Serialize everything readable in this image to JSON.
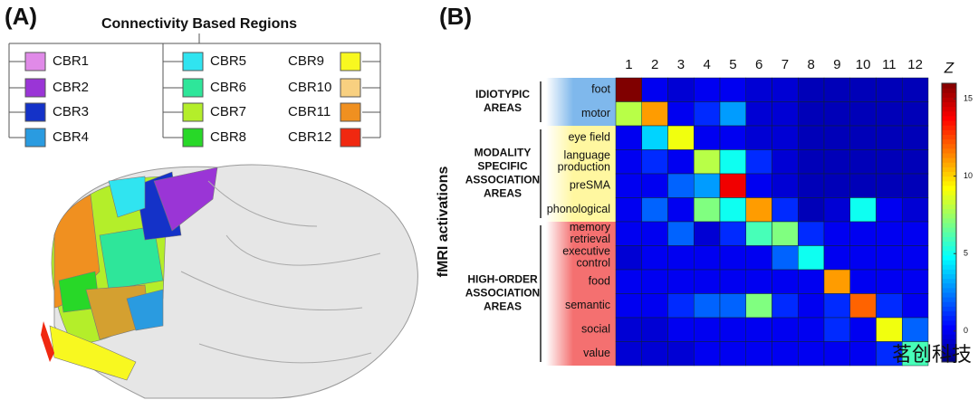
{
  "panel_a": {
    "label": "(A)",
    "title": "Connectivity Based Regions",
    "regions": [
      {
        "name": "CBR1",
        "color": "#e08ae8"
      },
      {
        "name": "CBR2",
        "color": "#9a35d6"
      },
      {
        "name": "CBR3",
        "color": "#1432c8"
      },
      {
        "name": "CBR4",
        "color": "#2a9be0"
      },
      {
        "name": "CBR5",
        "color": "#30e4f0"
      },
      {
        "name": "CBR6",
        "color": "#2ee69a"
      },
      {
        "name": "CBR7",
        "color": "#b4ee2a"
      },
      {
        "name": "CBR8",
        "color": "#28d828"
      },
      {
        "name": "CBR9",
        "color": "#f8f820"
      },
      {
        "name": "CBR10",
        "color": "#f8d080"
      },
      {
        "name": "CBR11",
        "color": "#f09020"
      },
      {
        "name": "CBR12",
        "color": "#f02810"
      }
    ]
  },
  "panel_b_label": "(B)",
  "watermark": "茗创科技",
  "chart_data": {
    "type": "heatmap",
    "y_axis_label": "fMRI activations",
    "x_categories": [
      "1",
      "2",
      "3",
      "4",
      "5",
      "6",
      "7",
      "8",
      "9",
      "10",
      "11",
      "12"
    ],
    "y_categories": [
      [
        "foot"
      ],
      [
        "motor"
      ],
      [
        "eye field"
      ],
      [
        "language",
        "production"
      ],
      [
        "preSMA"
      ],
      [
        "phonological"
      ],
      [
        "memory",
        "retrieval"
      ],
      [
        "executive",
        "control"
      ],
      [
        "food"
      ],
      [
        "semantic"
      ],
      [
        "social"
      ],
      [
        "value"
      ]
    ],
    "groups": [
      {
        "label": [
          "IDIOTYPIC",
          "AREAS"
        ],
        "rows": [
          0,
          1
        ],
        "color": "#7fb8ec"
      },
      {
        "label": [
          "MODALITY",
          "SPECIFIC",
          "ASSOCIATION",
          "AREAS"
        ],
        "rows": [
          2,
          5
        ],
        "color": "#fff7a0"
      },
      {
        "label": [
          "HIGH-ORDER",
          "ASSOCIATION",
          "AREAS"
        ],
        "rows": [
          6,
          11
        ],
        "color": "#f47070"
      }
    ],
    "values": [
      [
        16,
        0,
        -0.5,
        0,
        0,
        -0.5,
        -0.5,
        -1,
        -1,
        -1,
        -1,
        -1
      ],
      [
        8,
        11,
        0,
        1,
        3,
        -0.5,
        -0.5,
        -1,
        -1,
        -1,
        -1,
        -1
      ],
      [
        0,
        4,
        9,
        0,
        0,
        -0.5,
        -0.5,
        -1,
        -1,
        -1,
        -1,
        -1
      ],
      [
        0,
        1,
        0,
        8,
        5,
        1,
        -0.5,
        -1,
        -1,
        -1,
        -1,
        -1
      ],
      [
        0,
        0,
        2,
        3,
        14,
        0,
        -0.5,
        -1,
        -1,
        -1,
        -1,
        -1
      ],
      [
        0,
        2,
        0,
        7,
        5,
        11,
        1,
        -1,
        -0.5,
        5,
        0,
        -0.5
      ],
      [
        0,
        0,
        2,
        -0.5,
        1,
        6,
        7,
        1,
        0,
        0,
        0,
        0
      ],
      [
        -0.5,
        0,
        0,
        0,
        0,
        0,
        2,
        5,
        0,
        0,
        0,
        0
      ],
      [
        0,
        0,
        0,
        0,
        0,
        0,
        0,
        0,
        11,
        0,
        0,
        0
      ],
      [
        0,
        0,
        1,
        2,
        2,
        7,
        1,
        0,
        1,
        12,
        1,
        0
      ],
      [
        -0.5,
        -0.5,
        0,
        0,
        0,
        0,
        0,
        0,
        1,
        0,
        9,
        2
      ],
      [
        -0.5,
        -0.5,
        -0.5,
        0,
        0,
        0,
        0,
        0,
        0,
        0,
        1,
        6
      ]
    ],
    "colormap": "jet",
    "colorbar_title": "Z",
    "clim": [
      -2,
      16
    ],
    "colorbar_ticks": [
      0,
      5,
      10,
      15
    ]
  }
}
